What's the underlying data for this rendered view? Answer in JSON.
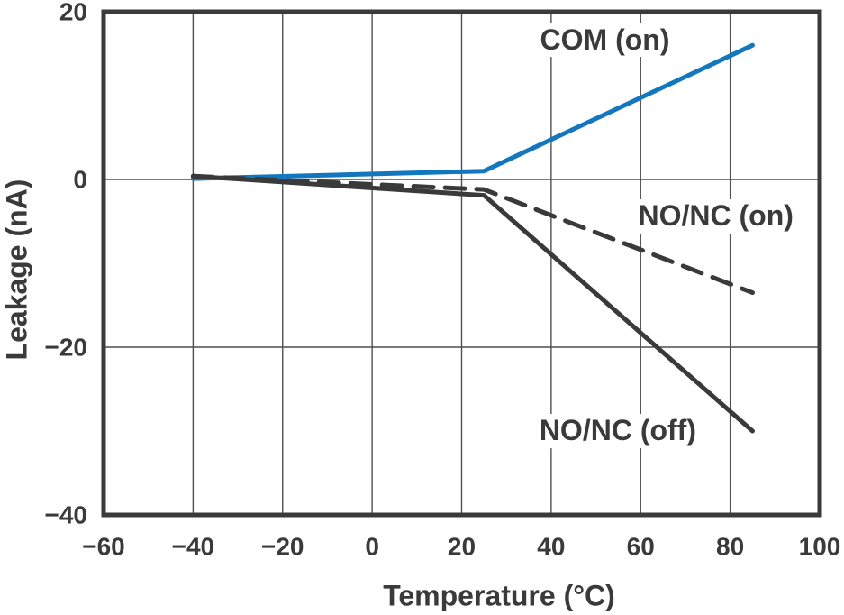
{
  "figure": {
    "background": "#ffffff",
    "text_color": "#3A3A3A",
    "border_color": "#3A3A3A",
    "grid_color": "#4F4F4F",
    "accent_blue": "#1277BE"
  },
  "chart_data": {
    "type": "line",
    "title": "",
    "xlabel": "Temperature (°C)",
    "ylabel": "Leakage (nA)",
    "xlim": [
      -60,
      100
    ],
    "ylim": [
      -40,
      20
    ],
    "grid": true,
    "legend_position": "inline-annotations",
    "x_ticks": [
      {
        "value": -60,
        "label": "−60"
      },
      {
        "value": -40,
        "label": "−40"
      },
      {
        "value": -20,
        "label": "−20"
      },
      {
        "value": 0,
        "label": "0"
      },
      {
        "value": 20,
        "label": "20"
      },
      {
        "value": 40,
        "label": "40"
      },
      {
        "value": 60,
        "label": "60"
      },
      {
        "value": 80,
        "label": "80"
      },
      {
        "value": 100,
        "label": "100"
      }
    ],
    "y_ticks": [
      {
        "value": 20,
        "label": "20"
      },
      {
        "value": 0,
        "label": "0"
      },
      {
        "value": -20,
        "label": "−20"
      },
      {
        "value": -40,
        "label": "−40"
      }
    ],
    "x_gridlines": [
      -40,
      -20,
      0,
      20,
      40,
      60,
      80
    ],
    "y_gridlines": [
      0,
      -20
    ],
    "series": [
      {
        "name": "COM (on)",
        "color": "#1277BE",
        "line_style": "solid",
        "points": [
          {
            "x": -40,
            "y": 0.1
          },
          {
            "x": 25,
            "y": 1.0
          },
          {
            "x": 85,
            "y": 16.0
          }
        ],
        "label_anchor": {
          "x": 52.0,
          "y": 16.6
        }
      },
      {
        "name": "NO/NC (on)",
        "color": "#3A3A3A",
        "line_style": "dashed",
        "points": [
          {
            "x": -40,
            "y": 0.4
          },
          {
            "x": 25,
            "y": -1.2
          },
          {
            "x": 85,
            "y": -13.5
          }
        ],
        "label_anchor": {
          "x": 76.8,
          "y": -4.4
        }
      },
      {
        "name": "NO/NC (off)",
        "color": "#3A3A3A",
        "line_style": "solid",
        "points": [
          {
            "x": -40,
            "y": 0.4
          },
          {
            "x": 25,
            "y": -1.9
          },
          {
            "x": 85,
            "y": -30.0
          }
        ],
        "label_anchor": {
          "x": 54.9,
          "y": -30.0
        }
      }
    ]
  }
}
